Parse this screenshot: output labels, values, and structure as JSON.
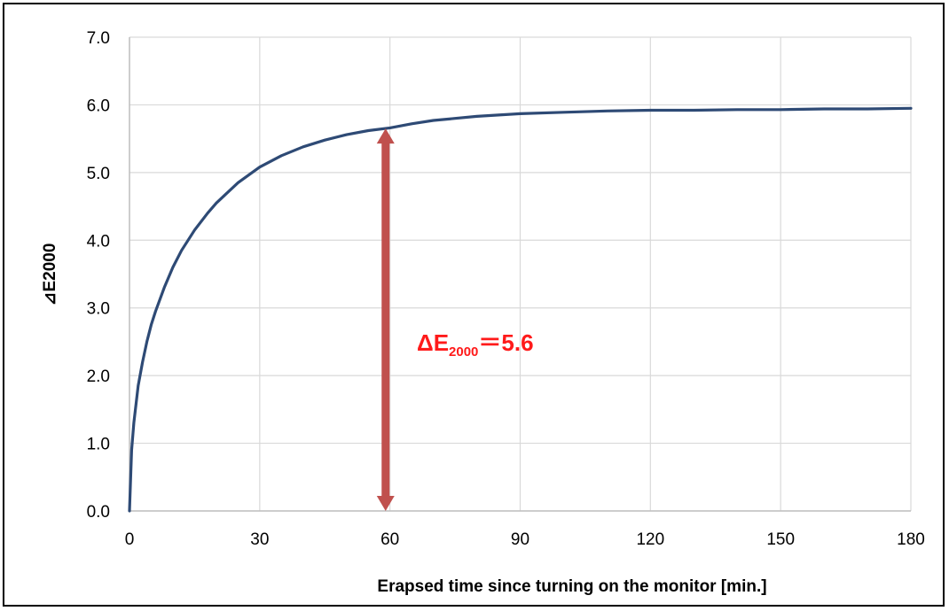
{
  "chart_data": {
    "type": "line",
    "title": "",
    "xlabel": "Erapsed time since turning on the monitor [min.]",
    "ylabel": "⊿E2000",
    "xlim": [
      0,
      180
    ],
    "ylim": [
      0,
      7
    ],
    "xticks": [
      0,
      30,
      60,
      90,
      120,
      150,
      180
    ],
    "xtick_labels": [
      "0",
      "30",
      "60",
      "90",
      "120",
      "150",
      "180"
    ],
    "yticks": [
      0,
      1,
      2,
      3,
      4,
      5,
      6,
      7
    ],
    "ytick_labels": [
      "0.0",
      "1.0",
      "2.0",
      "3.0",
      "4.0",
      "5.0",
      "6.0",
      "7.0"
    ],
    "grid": true,
    "legend": "none",
    "series": [
      {
        "color": "#2e4a75",
        "x": [
          0,
          0.5,
          1,
          2,
          3,
          4,
          5,
          6,
          8,
          10,
          12,
          15,
          18,
          20,
          25,
          30,
          35,
          40,
          45,
          50,
          55,
          60,
          65,
          70,
          75,
          80,
          85,
          90,
          100,
          110,
          120,
          130,
          140,
          150,
          160,
          170,
          180
        ],
        "y": [
          0,
          0.9,
          1.3,
          1.85,
          2.2,
          2.5,
          2.75,
          2.95,
          3.3,
          3.6,
          3.85,
          4.15,
          4.4,
          4.55,
          4.85,
          5.08,
          5.25,
          5.38,
          5.48,
          5.56,
          5.62,
          5.66,
          5.72,
          5.77,
          5.8,
          5.83,
          5.85,
          5.87,
          5.89,
          5.91,
          5.92,
          5.92,
          5.93,
          5.93,
          5.94,
          5.94,
          5.95
        ]
      }
    ],
    "annotation": {
      "arrow_x": 59,
      "arrow_y_from": 0,
      "arrow_y_to": 5.65,
      "arrow_color": "#c0504d",
      "text_delta": "ΔE",
      "text_sub": "2000",
      "text_value": "＝5.6",
      "text_color": "#ff1a1a"
    }
  }
}
